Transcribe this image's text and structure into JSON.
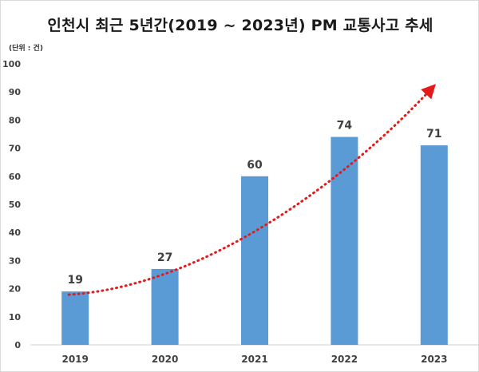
{
  "chart_data": {
    "type": "bar",
    "title": "인천시 최근 5년간(2019 ~ 2023년) PM 교통사고 추세",
    "unit_label": "(단위 : 건)",
    "categories": [
      "2019",
      "2020",
      "2021",
      "2022",
      "2023"
    ],
    "values": [
      19,
      27,
      60,
      74,
      71
    ],
    "ylim": [
      0,
      100
    ],
    "yticks": [
      0,
      10,
      20,
      30,
      40,
      50,
      60,
      70,
      80,
      90,
      100
    ],
    "grid": false,
    "legend": "none",
    "trendline": {
      "style": "dotted",
      "arrow": true
    },
    "colors": {
      "bar": "#5b9bd5",
      "trend": "#e31a1c",
      "text": "#404040"
    }
  }
}
